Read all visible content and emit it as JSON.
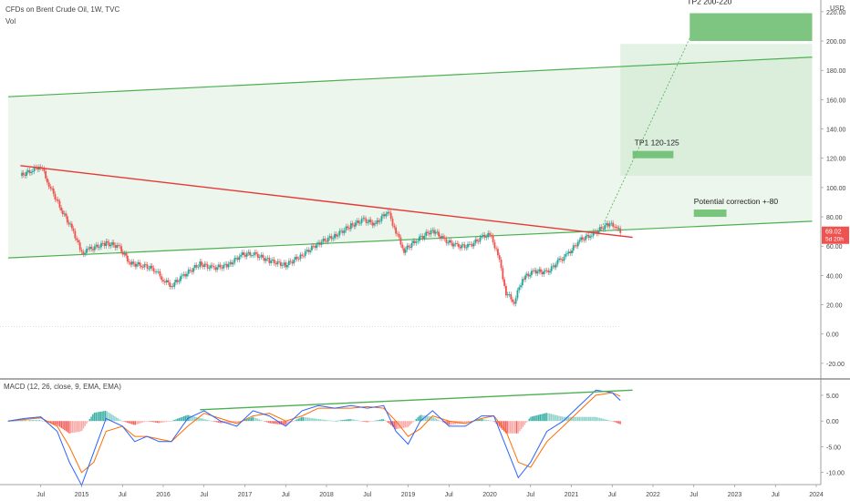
{
  "header": {
    "title": "CFDs on Brent Crude Oil, 1W, TVC",
    "vol_label": "Vol",
    "currency": "USD",
    "macd_label": "MACD (12, 26, close, 9, EMA, EMA)"
  },
  "price_badge": {
    "value": "69.02",
    "countdown": "5d 20h"
  },
  "annotations": {
    "tp2": "TP2 200-220",
    "tp1": "TP1 120-125",
    "correction": "Potential correction +-80"
  },
  "colors": {
    "up": "#26a69a",
    "down": "#ef5350",
    "trend_red": "#e53935",
    "channel_green": "#4caf50",
    "zone_fill": "#c8e6c9",
    "tp_fill": "#66bb6a",
    "macd_line": "#2962ff",
    "signal_line": "#ff6d00",
    "badge": "#ef5350"
  },
  "chart_data": [
    {
      "type": "line",
      "title": "CFDs on Brent Crude Oil, 1W, TVC",
      "y_axis": {
        "ticks": [
          220,
          200,
          180,
          160,
          140,
          120,
          100,
          80,
          60,
          40,
          20,
          0,
          -20
        ],
        "tick_labels": [
          "220.00",
          "200.00",
          "180.00",
          "160.00",
          "140.00",
          "120.00",
          "100.00",
          "80.00",
          "60.00",
          "40.00",
          "20.00",
          "0.00",
          "-20.00"
        ],
        "ylim": [
          -30,
          228
        ]
      },
      "x_axis": {
        "ticks": [
          "Jul",
          "2015",
          "Jul",
          "2016",
          "Jul",
          "2017",
          "Jul",
          "2018",
          "Jul",
          "2019",
          "Jul",
          "2020",
          "Jul",
          "2021",
          "Jul",
          "2022",
          "Jul",
          "2023",
          "Jul",
          "2024"
        ],
        "tick_values": [
          2014.5,
          2015,
          2015.5,
          2016,
          2016.5,
          2017,
          2017.5,
          2018,
          2018.5,
          2019,
          2019.5,
          2020,
          2020.5,
          2021,
          2021.5,
          2022,
          2022.5,
          2023,
          2023.5,
          2024
        ]
      },
      "series": [
        {
          "name": "Brent Crude Oil",
          "x": [
            2014.25,
            2014.4,
            2014.5,
            2014.6,
            2014.75,
            2014.9,
            2015.0,
            2015.1,
            2015.3,
            2015.45,
            2015.6,
            2015.75,
            2015.9,
            2016.0,
            2016.1,
            2016.25,
            2016.45,
            2016.6,
            2016.8,
            2016.95,
            2017.1,
            2017.3,
            2017.5,
            2017.7,
            2017.9,
            2018.1,
            2018.3,
            2018.45,
            2018.6,
            2018.75,
            2018.85,
            2018.95,
            2019.1,
            2019.3,
            2019.45,
            2019.6,
            2019.75,
            2019.9,
            2020.0,
            2020.1,
            2020.2,
            2020.3,
            2020.4,
            2020.55,
            2020.7,
            2020.85,
            2020.95,
            2021.1,
            2021.25,
            2021.45,
            2021.55,
            2021.6
          ],
          "y": [
            108,
            112,
            115,
            102,
            85,
            70,
            55,
            58,
            62,
            60,
            48,
            47,
            44,
            37,
            33,
            40,
            48,
            45,
            47,
            54,
            55,
            50,
            47,
            54,
            62,
            67,
            74,
            78,
            75,
            84,
            70,
            57,
            64,
            71,
            64,
            60,
            60,
            66,
            68,
            55,
            28,
            22,
            38,
            43,
            42,
            50,
            54,
            64,
            68,
            75,
            74,
            69
          ]
        }
      ],
      "drawings": {
        "resistance_line": {
          "x": [
            2014.25,
            2021.75
          ],
          "y": [
            115,
            66
          ]
        },
        "channel_upper": {
          "x": [
            2014.1,
            2023.95
          ],
          "y": [
            162,
            189
          ]
        },
        "channel_lower": {
          "x": [
            2014.1,
            2023.95
          ],
          "y": [
            52,
            77
          ]
        },
        "projection": {
          "x": [
            2021.35,
            2022.45
          ],
          "y": [
            70,
            202
          ]
        },
        "target_zone": {
          "x": [
            2021.6,
            2023.95
          ],
          "y": [
            108,
            198
          ]
        },
        "tp2_box": {
          "x": [
            2022.45,
            2023.95
          ],
          "y": [
            200,
            219
          ]
        },
        "tp1_box": {
          "x": [
            2021.75,
            2022.25
          ],
          "y": [
            120,
            125
          ]
        },
        "correction_box": {
          "x": [
            2022.5,
            2022.9
          ],
          "y": [
            80,
            85
          ]
        }
      }
    },
    {
      "type": "line",
      "title": "MACD (12, 26, close, 9, EMA, EMA)",
      "y_axis": {
        "ticks": [
          5,
          0,
          -5,
          -10
        ],
        "tick_labels": [
          "5.00",
          "0.00",
          "-5.00",
          "-10.00"
        ],
        "ylim": [
          -12,
          8
        ]
      },
      "series": [
        {
          "name": "MACD",
          "x": [
            2014.1,
            2014.3,
            2014.5,
            2014.7,
            2014.85,
            2015.0,
            2015.15,
            2015.3,
            2015.5,
            2015.65,
            2015.8,
            2015.95,
            2016.1,
            2016.3,
            2016.5,
            2016.7,
            2016.9,
            2017.1,
            2017.3,
            2017.5,
            2017.7,
            2017.9,
            2018.1,
            2018.3,
            2018.5,
            2018.7,
            2018.85,
            2019.0,
            2019.15,
            2019.3,
            2019.5,
            2019.7,
            2019.9,
            2020.05,
            2020.2,
            2020.35,
            2020.5,
            2020.7,
            2020.9,
            2021.1,
            2021.3,
            2021.5,
            2021.6
          ],
          "y": [
            0,
            0.5,
            0.8,
            -2,
            -8,
            -12.5,
            -6,
            0.5,
            -1,
            -4,
            -3,
            -4,
            -4,
            0.5,
            2,
            0,
            -1,
            2,
            1,
            -1,
            2,
            3,
            2.5,
            3,
            2.5,
            3,
            -2,
            -4.5,
            0,
            2,
            -1,
            -1,
            1,
            1,
            -5,
            -11,
            -8,
            -2,
            0,
            3,
            6,
            5.5,
            4
          ]
        },
        {
          "name": "Signal",
          "x": [
            2014.1,
            2014.3,
            2014.5,
            2014.7,
            2014.85,
            2015.0,
            2015.15,
            2015.3,
            2015.5,
            2015.65,
            2015.8,
            2015.95,
            2016.1,
            2016.3,
            2016.5,
            2016.7,
            2016.9,
            2017.1,
            2017.3,
            2017.5,
            2017.7,
            2017.9,
            2018.1,
            2018.3,
            2018.5,
            2018.7,
            2018.85,
            2019.0,
            2019.15,
            2019.3,
            2019.5,
            2019.7,
            2019.9,
            2020.05,
            2020.2,
            2020.35,
            2020.5,
            2020.7,
            2020.9,
            2021.1,
            2021.3,
            2021.5,
            2021.6
          ],
          "y": [
            0,
            0.3,
            0.6,
            -1,
            -5,
            -10,
            -8,
            -2,
            -1,
            -3,
            -3,
            -3.5,
            -4,
            -1,
            1.5,
            0.5,
            -0.5,
            1,
            1.5,
            0,
            1,
            2.5,
            2.5,
            2.5,
            2.8,
            2.5,
            0,
            -3,
            -1.5,
            1,
            0,
            -0.5,
            0.5,
            1,
            -2,
            -8,
            -9,
            -4,
            -1,
            2,
            5,
            5.5,
            4.8
          ]
        }
      ],
      "trendline": {
        "x": [
          2016.45,
          2021.75
        ],
        "y": [
          2.2,
          6
        ]
      }
    }
  ],
  "time_axis_labels": [
    "Jul",
    "2015",
    "Jul",
    "2016",
    "Jul",
    "2017",
    "Jul",
    "2018",
    "Jul",
    "2019",
    "Jul",
    "2020",
    "Jul",
    "2021",
    "Jul",
    "2022",
    "Jul",
    "2023",
    "Jul",
    "2024"
  ]
}
